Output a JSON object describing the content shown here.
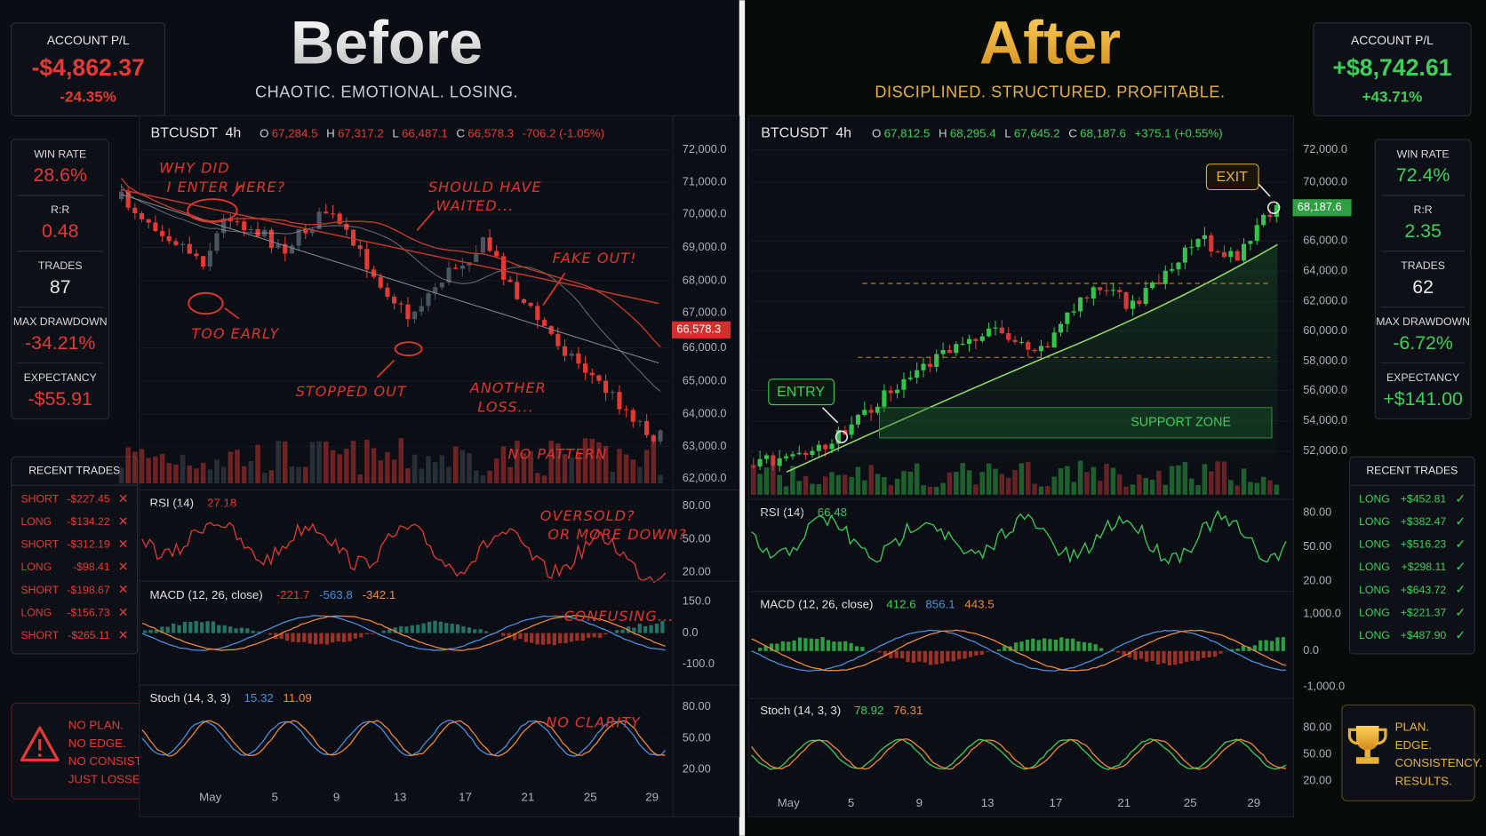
{
  "before": {
    "title": "Before",
    "subtitle": "CHAOTIC. EMOTIONAL. LOSING.",
    "account": {
      "label": "ACCOUNT P/L",
      "value": "-$4,862.37",
      "percent": "-24.35%"
    },
    "stats": [
      {
        "label": "WIN RATE",
        "value": "28.6%"
      },
      {
        "label": "R:R",
        "value": "0.48"
      },
      {
        "label": "TRADES",
        "value": "87"
      },
      {
        "label": "MAX DRAWDOWN",
        "value": "-34.21%"
      },
      {
        "label": "EXPECTANCY",
        "value": "-$55.91"
      }
    ],
    "recent_trades": {
      "title": "RECENT TRADES",
      "rows": [
        {
          "side": "SHORT",
          "pnl": "-$227.45",
          "icon": "✕"
        },
        {
          "side": "LONG",
          "pnl": "-$134.22",
          "icon": "✕"
        },
        {
          "side": "SHORT",
          "pnl": "-$312.19",
          "icon": "✕"
        },
        {
          "side": "LONG",
          "pnl": "-$98.41",
          "icon": "✕"
        },
        {
          "side": "SHORT",
          "pnl": "-$198.67",
          "icon": "✕"
        },
        {
          "side": "LONG",
          "pnl": "-$156.73",
          "icon": "✕"
        },
        {
          "side": "SHORT",
          "pnl": "-$265.11",
          "icon": "✕"
        }
      ]
    },
    "chart": {
      "symbol": "BTCUSDT",
      "interval": "4h",
      "ohlc": [
        {
          "key": "O",
          "value": "67,284.5"
        },
        {
          "key": "H",
          "value": "67,317.2"
        },
        {
          "key": "L",
          "value": "66,487.1"
        },
        {
          "key": "C",
          "value": "66,578.3"
        }
      ],
      "change": "-706.2 (-1.05%)",
      "price_ticks": [
        "72,000.0",
        "71,000.0",
        "70,000.0",
        "69,000.0",
        "68,000.0",
        "67,000.0",
        "66,000.0",
        "65,000.0",
        "64,000.0",
        "63,000.0",
        "62,000.0"
      ],
      "last_price": "66,578.3",
      "dates": [
        "May",
        "5",
        "9",
        "13",
        "17",
        "21",
        "25",
        "29"
      ],
      "indicators": [
        {
          "name": "RSI (14)",
          "values": [
            "27.18"
          ],
          "ticks": [
            "80.00",
            "50.00",
            "20.00"
          ]
        },
        {
          "name": "MACD (12, 26, close)",
          "values": [
            "-221.7",
            "-563.8",
            "-342.1"
          ],
          "ticks": [
            "150.0",
            "0.0",
            "-100.0"
          ]
        },
        {
          "name": "Stoch (14, 3, 3)",
          "values": [
            "15.32",
            "11.09"
          ],
          "ticks": [
            "80.00",
            "50.00",
            "20.00"
          ]
        }
      ]
    },
    "annotations": [
      {
        "lines": [
          "WHY DID",
          "I ENTER HERE?"
        ]
      },
      {
        "lines": [
          "SHOULD HAVE",
          "WAITED..."
        ]
      },
      {
        "lines": [
          "FAKE OUT!"
        ]
      },
      {
        "lines": [
          "TOO EARLY"
        ]
      },
      {
        "lines": [
          "STOPPED OUT"
        ]
      },
      {
        "lines": [
          "ANOTHER",
          "LOSS..."
        ]
      },
      {
        "lines": [
          "NO PATTERN"
        ]
      },
      {
        "lines": [
          "OVERSOLD?",
          "OR MORE DOWN?"
        ]
      },
      {
        "lines": [
          "CONFUSING..."
        ]
      },
      {
        "lines": [
          "NO CLARITY"
        ]
      }
    ],
    "footer": {
      "lines": [
        "NO PLAN.",
        "NO EDGE.",
        "NO CONSISTENCY.",
        "JUST LOSSES."
      ]
    }
  },
  "after": {
    "title": "After",
    "subtitle": "DISCIPLINED. STRUCTURED. PROFITABLE.",
    "account": {
      "label": "ACCOUNT P/L",
      "value": "+$8,742.61",
      "percent": "+43.71%"
    },
    "stats": [
      {
        "label": "WIN RATE",
        "value": "72.4%"
      },
      {
        "label": "R:R",
        "value": "2.35"
      },
      {
        "label": "TRADES",
        "value": "62"
      },
      {
        "label": "MAX DRAWDOWN",
        "value": "-6.72%"
      },
      {
        "label": "EXPECTANCY",
        "value": "+$141.00"
      }
    ],
    "recent_trades": {
      "title": "RECENT TRADES",
      "rows": [
        {
          "side": "LONG",
          "pnl": "+$452.81",
          "icon": "✓"
        },
        {
          "side": "LONG",
          "pnl": "+$382.47",
          "icon": "✓"
        },
        {
          "side": "LONG",
          "pnl": "+$516.23",
          "icon": "✓"
        },
        {
          "side": "LONG",
          "pnl": "+$298.11",
          "icon": "✓"
        },
        {
          "side": "LONG",
          "pnl": "+$643.72",
          "icon": "✓"
        },
        {
          "side": "LONG",
          "pnl": "+$221.37",
          "icon": "✓"
        },
        {
          "side": "LONG",
          "pnl": "+$487.90",
          "icon": "✓"
        }
      ]
    },
    "chart": {
      "symbol": "BTCUSDT",
      "interval": "4h",
      "ohlc": [
        {
          "key": "O",
          "value": "67,812.5"
        },
        {
          "key": "H",
          "value": "68,295.4"
        },
        {
          "key": "L",
          "value": "67,645.2"
        },
        {
          "key": "C",
          "value": "68,187.6"
        }
      ],
      "change": "+375.1 (+0.55%)",
      "price_ticks": [
        "72,000.0",
        "70,000.0",
        "66,000.0",
        "64,000.0",
        "62,000.0",
        "60,000.0",
        "58,000.0",
        "56,000.0",
        "54,000.0",
        "52,000.0"
      ],
      "last_price": "68,187.6",
      "dates": [
        "May",
        "5",
        "9",
        "13",
        "17",
        "21",
        "25",
        "29"
      ],
      "indicators": [
        {
          "name": "RSI (14)",
          "values": [
            "66.48"
          ],
          "ticks": [
            "80.00",
            "50.00",
            "20.00"
          ]
        },
        {
          "name": "MACD (12, 26, close)",
          "values": [
            "412.6",
            "856.1",
            "443.5"
          ],
          "ticks": [
            "1,000.0",
            "0.0",
            "-1,000.0"
          ]
        },
        {
          "name": "Stoch (14, 3, 3)",
          "values": [
            "78.92",
            "76.31"
          ],
          "ticks": [
            "80.00",
            "50.00",
            "20.00"
          ]
        }
      ]
    },
    "annotations": [
      {
        "lines": [
          "ENTRY"
        ]
      },
      {
        "lines": [
          "EXIT"
        ]
      },
      {
        "lines": [
          "SUPPORT ZONE"
        ]
      }
    ],
    "footer": {
      "lines": [
        "PLAN.",
        "EDGE.",
        "CONSISTENCY.",
        "RESULTS."
      ]
    }
  }
}
